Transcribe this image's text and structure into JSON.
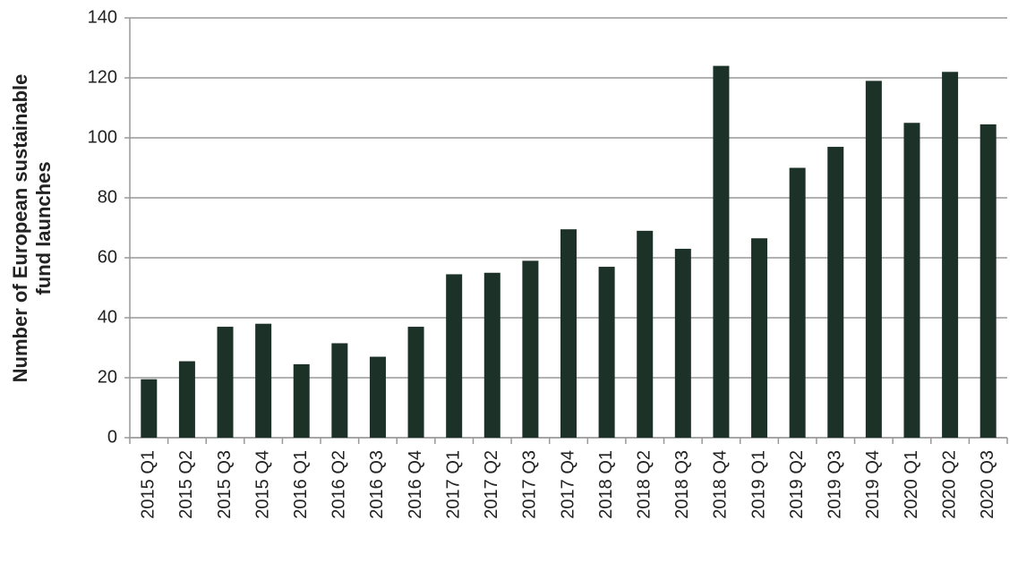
{
  "chart_data": {
    "type": "bar",
    "ylabel": [
      "Number of European sustainable",
      "fund launches"
    ],
    "categories": [
      "2015 Q1",
      "2015 Q2",
      "2015 Q3",
      "2015 Q4",
      "2016 Q1",
      "2016 Q2",
      "2016 Q3",
      "2016 Q4",
      "2017 Q1",
      "2017 Q2",
      "2017 Q3",
      "2017 Q4",
      "2018 Q1",
      "2018 Q2",
      "2018 Q3",
      "2018 Q4",
      "2019 Q1",
      "2019 Q2",
      "2019 Q3",
      "2019 Q4",
      "2020 Q1",
      "2020 Q2",
      "2020 Q3"
    ],
    "values": [
      19.5,
      25.5,
      37,
      38,
      24.5,
      31.5,
      27,
      37,
      54.5,
      55,
      59,
      69.5,
      57,
      69,
      63,
      124,
      66.5,
      90,
      97,
      119,
      105,
      122,
      104.5
    ],
    "color": "#1c3127",
    "ylim": [
      0,
      140
    ],
    "yticks": [
      0,
      20,
      40,
      60,
      80,
      100,
      120,
      140
    ],
    "grid": true
  }
}
